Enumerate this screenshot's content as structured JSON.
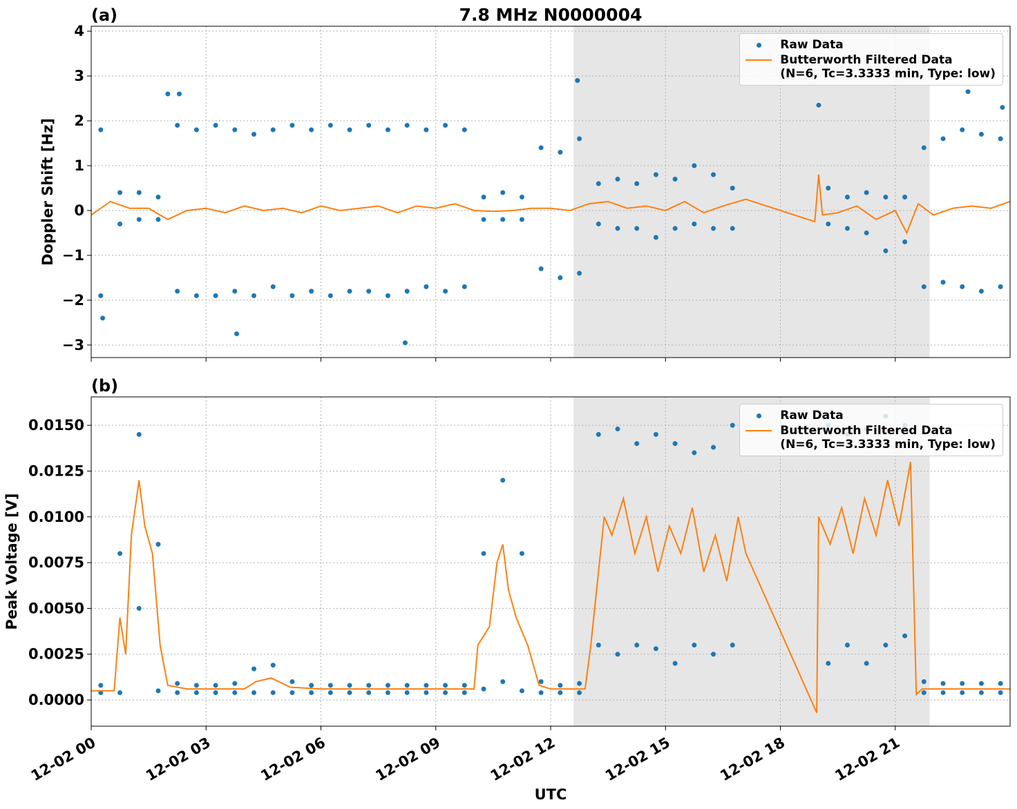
{
  "chart_data": [
    {
      "type": "scatter",
      "panel_label": "(a)",
      "title": "7.8 MHz N0000004",
      "ylabel": "Doppler Shift [Hz]",
      "xlim": [
        0,
        24
      ],
      "ylim": [
        -3.28,
        4.11
      ],
      "show_xtick_labels": false,
      "xticks": [
        0,
        3,
        6,
        9,
        12,
        15,
        18,
        21
      ],
      "yticks": [
        {
          "value": -3,
          "label": "−3"
        },
        {
          "value": -2,
          "label": "−2"
        },
        {
          "value": -1,
          "label": "−1"
        },
        0,
        1,
        2,
        3,
        4
      ],
      "grid": true,
      "legend": "upper right",
      "shaded_span": [
        12.6,
        21.9
      ],
      "shade_color": "#e6e6e6",
      "series": [
        {
          "name": "Raw Data",
          "type": "scatter",
          "color": "#1f77b4",
          "x": [
            0.25,
            0.25,
            0.75,
            0.75,
            1.25,
            1.25,
            1.75,
            1.75,
            2.25,
            2.25,
            2.75,
            2.75,
            3.25,
            3.25,
            3.75,
            3.75,
            4.25,
            4.25,
            4.75,
            4.75,
            5.25,
            5.25,
            5.75,
            5.75,
            6.25,
            6.25,
            6.75,
            6.75,
            7.25,
            7.25,
            7.75,
            7.75,
            8.25,
            8.25,
            8.75,
            8.75,
            9.25,
            9.25,
            9.75,
            9.75,
            10.25,
            10.25,
            10.75,
            10.75,
            11.25,
            11.25,
            11.75,
            11.75,
            12.25,
            12.25,
            12.75,
            12.75,
            13.25,
            13.25,
            13.75,
            13.75,
            14.25,
            14.25,
            14.75,
            14.75,
            15.25,
            15.25,
            15.75,
            15.75,
            16.25,
            16.25,
            16.75,
            16.75,
            19.25,
            19.25,
            19.75,
            19.75,
            20.25,
            20.25,
            20.75,
            20.75,
            21.25,
            21.25,
            21.75,
            21.75,
            22.25,
            22.25,
            22.75,
            22.75,
            23.25,
            23.25,
            23.75,
            23.75,
            2.0,
            2.3,
            12.7,
            19.0,
            8.2,
            3.8,
            23.8,
            22.9,
            0.3
          ],
          "values": [
            1.8,
            -1.9,
            0.4,
            -0.3,
            0.4,
            -0.2,
            0.3,
            -0.2,
            1.9,
            -1.8,
            1.8,
            -1.9,
            1.9,
            -1.9,
            1.8,
            -1.8,
            1.7,
            -1.9,
            1.8,
            -1.7,
            1.9,
            -1.9,
            1.8,
            -1.8,
            1.9,
            -1.9,
            1.8,
            -1.8,
            1.9,
            -1.8,
            1.8,
            -1.9,
            1.9,
            -1.8,
            1.8,
            -1.7,
            1.9,
            -1.8,
            1.8,
            -1.7,
            0.3,
            -0.2,
            0.4,
            -0.2,
            0.3,
            -0.2,
            1.4,
            -1.3,
            1.3,
            -1.5,
            1.6,
            -1.4,
            0.6,
            -0.3,
            0.7,
            -0.4,
            0.6,
            -0.4,
            0.8,
            -0.6,
            0.7,
            -0.4,
            1.0,
            -0.3,
            0.8,
            -0.4,
            0.5,
            -0.4,
            0.5,
            -0.3,
            0.3,
            -0.4,
            0.4,
            -0.5,
            0.3,
            -0.9,
            0.3,
            -0.7,
            1.4,
            -1.7,
            1.6,
            -1.6,
            1.8,
            -1.7,
            1.7,
            -1.8,
            1.6,
            -1.7,
            2.6,
            2.6,
            2.9,
            2.35,
            -2.95,
            -2.75,
            2.3,
            2.65,
            -2.4
          ]
        },
        {
          "name": "Butterworth Filtered Data\n(N=6, Tc=3.3333 min, Type: low)",
          "type": "line",
          "color": "#ff7f0e",
          "x": [
            0,
            0.5,
            1,
            1.5,
            2,
            2.5,
            3,
            3.5,
            4,
            4.5,
            5,
            5.5,
            6,
            6.5,
            7,
            7.5,
            8,
            8.5,
            9,
            9.5,
            10,
            10.5,
            11,
            11.5,
            12,
            12.5,
            13,
            13.5,
            14,
            14.5,
            15,
            15.5,
            16,
            16.5,
            17.1,
            18.9,
            19.0,
            19.1,
            19.5,
            20,
            20.5,
            21,
            21.3,
            21.6,
            22,
            22.5,
            23,
            23.5,
            24
          ],
          "values": [
            -0.1,
            0.2,
            0.05,
            0.05,
            -0.2,
            0,
            0.05,
            -0.05,
            0.1,
            0,
            0.05,
            -0.05,
            0.1,
            0,
            0.05,
            0.1,
            -0.05,
            0.1,
            0.05,
            0.15,
            0,
            -0.02,
            0,
            0.05,
            0.05,
            0,
            0.15,
            0.2,
            0.05,
            0.1,
            0,
            0.2,
            -0.05,
            0.1,
            0.25,
            -0.25,
            0.8,
            -0.1,
            -0.05,
            0.1,
            -0.2,
            0,
            -0.5,
            0.15,
            -0.1,
            0.05,
            0.1,
            0.05,
            0.2
          ]
        }
      ]
    },
    {
      "type": "scatter",
      "panel_label": "(b)",
      "ylabel": "Peak Voltage [V]",
      "xlabel": "UTC",
      "xlim": [
        0,
        24
      ],
      "ylim": [
        -0.00143,
        0.01655
      ],
      "show_xtick_labels": true,
      "xticks": [
        {
          "value": 0,
          "label": "12-02 00"
        },
        {
          "value": 3,
          "label": "12-02 03"
        },
        {
          "value": 6,
          "label": "12-02 06"
        },
        {
          "value": 9,
          "label": "12-02 09"
        },
        {
          "value": 12,
          "label": "12-02 12"
        },
        {
          "value": 15,
          "label": "12-02 15"
        },
        {
          "value": 18,
          "label": "12-02 18"
        },
        {
          "value": 21,
          "label": "12-02 21"
        }
      ],
      "yticks": [
        {
          "value": 0,
          "label": "0.0000"
        },
        {
          "value": 0.0025,
          "label": "0.0025"
        },
        {
          "value": 0.005,
          "label": "0.0050"
        },
        {
          "value": 0.0075,
          "label": "0.0075"
        },
        {
          "value": 0.01,
          "label": "0.0100"
        },
        {
          "value": 0.0125,
          "label": "0.0125"
        },
        {
          "value": 0.015,
          "label": "0.0150"
        }
      ],
      "grid": true,
      "legend": "upper right",
      "shaded_span": [
        12.6,
        21.9
      ],
      "shade_color": "#e6e6e6",
      "series": [
        {
          "name": "Raw Data",
          "type": "scatter",
          "color": "#1f77b4",
          "x": [
            0.25,
            0.25,
            0.75,
            0.75,
            1.25,
            1.25,
            1.75,
            1.75,
            2.25,
            2.25,
            2.75,
            2.75,
            3.25,
            3.25,
            3.75,
            3.75,
            4.25,
            4.25,
            4.75,
            4.75,
            5.25,
            5.25,
            5.75,
            5.75,
            6.25,
            6.25,
            6.75,
            6.75,
            7.25,
            7.25,
            7.75,
            7.75,
            8.25,
            8.25,
            8.75,
            8.75,
            9.25,
            9.25,
            9.75,
            9.75,
            10.25,
            10.25,
            10.75,
            10.75,
            11.25,
            11.25,
            11.75,
            11.75,
            12.25,
            12.25,
            12.75,
            12.75,
            13.25,
            13.25,
            13.75,
            13.75,
            14.25,
            14.25,
            14.75,
            14.75,
            15.25,
            15.25,
            15.75,
            15.75,
            16.25,
            16.25,
            16.75,
            16.75,
            19.25,
            19.25,
            19.75,
            19.75,
            20.25,
            20.25,
            20.75,
            20.75,
            21.25,
            21.25,
            21.75,
            21.75,
            22.25,
            22.25,
            22.75,
            22.75,
            23.25,
            23.25,
            23.75,
            23.75
          ],
          "values": [
            0.0008,
            0.0004,
            0.008,
            0.0004,
            0.0145,
            0.005,
            0.0085,
            0.0005,
            0.0009,
            0.0004,
            0.0008,
            0.0004,
            0.0008,
            0.0004,
            0.0009,
            0.0004,
            0.0017,
            0.0004,
            0.0019,
            0.0004,
            0.001,
            0.0004,
            0.0008,
            0.0004,
            0.0008,
            0.0004,
            0.0008,
            0.0004,
            0.0008,
            0.0004,
            0.0008,
            0.0004,
            0.0008,
            0.0004,
            0.0008,
            0.0004,
            0.0008,
            0.0004,
            0.0008,
            0.0004,
            0.008,
            0.0006,
            0.012,
            0.001,
            0.008,
            0.0005,
            0.001,
            0.0004,
            0.0008,
            0.0004,
            0.0009,
            0.0004,
            0.0145,
            0.003,
            0.0148,
            0.0025,
            0.014,
            0.003,
            0.0145,
            0.0028,
            0.014,
            0.002,
            0.0135,
            0.003,
            0.0138,
            0.0025,
            0.015,
            0.003,
            0.015,
            0.002,
            0.0145,
            0.003,
            0.0148,
            0.002,
            0.0155,
            0.003,
            0.015,
            0.0035,
            0.001,
            0.0004,
            0.0009,
            0.0004,
            0.0009,
            0.0004,
            0.0009,
            0.0004,
            0.0009,
            0.0004
          ]
        },
        {
          "name": "Butterworth Filtered Data\n(N=6, Tc=3.3333 min, Type: low)",
          "type": "line",
          "color": "#ff7f0e",
          "x": [
            0,
            0.6,
            0.75,
            0.9,
            1.05,
            1.25,
            1.4,
            1.6,
            1.8,
            2.0,
            2.5,
            4,
            4.3,
            4.7,
            5.2,
            6,
            10.0,
            10.1,
            10.4,
            10.6,
            10.75,
            10.9,
            11.1,
            11.4,
            11.7,
            12,
            12.9,
            13.05,
            13.2,
            13.4,
            13.6,
            13.9,
            14.2,
            14.5,
            14.8,
            15.1,
            15.4,
            15.7,
            16.0,
            16.3,
            16.6,
            16.9,
            17.1,
            18.95,
            19.0,
            19.3,
            19.6,
            19.9,
            20.2,
            20.5,
            20.8,
            21.1,
            21.4,
            21.55,
            21.7,
            24
          ],
          "values": [
            0.0005,
            0.0005,
            0.0045,
            0.0025,
            0.009,
            0.012,
            0.0095,
            0.008,
            0.003,
            0.0008,
            0.0006,
            0.0006,
            0.001,
            0.0012,
            0.0007,
            0.0006,
            0.0006,
            0.003,
            0.004,
            0.0075,
            0.0085,
            0.006,
            0.0045,
            0.003,
            0.0008,
            0.0006,
            0.0006,
            0.003,
            0.006,
            0.01,
            0.009,
            0.011,
            0.008,
            0.01,
            0.007,
            0.0095,
            0.008,
            0.0105,
            0.007,
            0.009,
            0.0065,
            0.01,
            0.008,
            -0.0007,
            0.01,
            0.0085,
            0.0105,
            0.008,
            0.011,
            0.009,
            0.012,
            0.0095,
            0.013,
            0.0003,
            0.0006,
            0.0006
          ]
        }
      ]
    }
  ]
}
